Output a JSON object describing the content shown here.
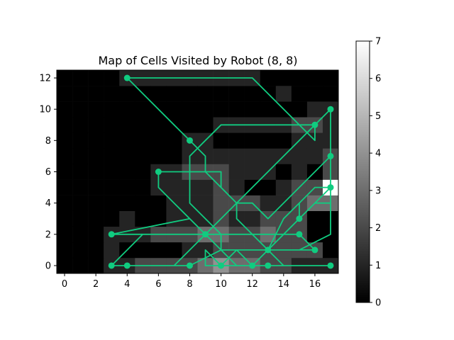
{
  "chart_data": {
    "type": "heatmap",
    "title": "Map of Cells Visited by Robot (8, 8)",
    "xlabel": "",
    "ylabel": "",
    "xlim": [
      -0.5,
      17.5
    ],
    "ylim": [
      -0.5,
      12.5
    ],
    "x_ticks": [
      0,
      2,
      4,
      6,
      8,
      10,
      12,
      14,
      16
    ],
    "y_ticks": [
      0,
      2,
      4,
      6,
      8,
      10,
      12
    ],
    "colorbar": {
      "min": 0,
      "max": 7,
      "ticks": [
        0,
        1,
        2,
        3,
        4,
        5,
        6,
        7
      ],
      "colormap": "gray"
    },
    "grid": false,
    "path_color": "#10cc80",
    "cell_counts": [
      {
        "row": 0,
        "values": [
          0,
          0,
          0,
          1,
          1,
          2,
          2,
          2,
          2,
          3,
          4,
          3,
          3,
          2,
          2,
          1,
          1,
          1
        ]
      },
      {
        "row": 1,
        "values": [
          0,
          0,
          0,
          1,
          0,
          0,
          0,
          0,
          1,
          1,
          2,
          2,
          2,
          2,
          2,
          2,
          2,
          0
        ]
      },
      {
        "row": 2,
        "values": [
          0,
          0,
          0,
          1,
          1,
          1,
          2,
          2,
          2,
          3,
          3,
          2,
          2,
          3,
          2,
          2,
          0,
          0
        ]
      },
      {
        "row": 3,
        "values": [
          0,
          0,
          0,
          0,
          1,
          0,
          0,
          1,
          1,
          1,
          2,
          1,
          1,
          2,
          2,
          2,
          0,
          0
        ]
      },
      {
        "row": 4,
        "values": [
          0,
          0,
          0,
          0,
          0,
          0,
          0,
          1,
          1,
          1,
          2,
          2,
          2,
          1,
          1,
          2,
          3,
          3
        ]
      },
      {
        "row": 5,
        "values": [
          0,
          0,
          0,
          0,
          0,
          0,
          1,
          1,
          1,
          1,
          2,
          1,
          0,
          0,
          1,
          2,
          2,
          7
        ]
      },
      {
        "row": 6,
        "values": [
          0,
          0,
          0,
          0,
          0,
          0,
          1,
          1,
          2,
          2,
          2,
          1,
          1,
          1,
          0,
          1,
          0,
          2
        ]
      },
      {
        "row": 7,
        "values": [
          0,
          0,
          0,
          0,
          0,
          0,
          0,
          0,
          1,
          1,
          1,
          1,
          1,
          1,
          1,
          1,
          1,
          2
        ]
      },
      {
        "row": 8,
        "values": [
          0,
          0,
          0,
          0,
          0,
          0,
          0,
          0,
          1,
          1,
          0,
          0,
          0,
          0,
          0,
          1,
          1,
          1
        ]
      },
      {
        "row": 9,
        "values": [
          0,
          0,
          0,
          0,
          0,
          0,
          0,
          0,
          0,
          0,
          1,
          1,
          1,
          1,
          1,
          2,
          2,
          1
        ]
      },
      {
        "row": 10,
        "values": [
          0,
          0,
          0,
          0,
          0,
          0,
          0,
          0,
          0,
          0,
          0,
          0,
          0,
          0,
          0,
          0,
          1,
          1
        ]
      },
      {
        "row": 11,
        "values": [
          0,
          0,
          0,
          0,
          0,
          0,
          0,
          0,
          0,
          0,
          0,
          0,
          0,
          0,
          1,
          0,
          0,
          0
        ]
      },
      {
        "row": 12,
        "values": [
          0,
          0,
          0,
          0,
          1,
          1,
          1,
          1,
          1,
          1,
          1,
          1,
          1,
          0,
          0,
          0,
          0,
          0
        ]
      }
    ],
    "path": [
      [
        8,
        0
      ],
      [
        5,
        0
      ],
      [
        4,
        0
      ],
      [
        3,
        0
      ],
      [
        4,
        1
      ],
      [
        5,
        2
      ],
      [
        9,
        2
      ],
      [
        10,
        2
      ],
      [
        14,
        2
      ],
      [
        15,
        2
      ],
      [
        16,
        1
      ],
      [
        13,
        1
      ],
      [
        14,
        2
      ],
      [
        15,
        3
      ],
      [
        15,
        4
      ],
      [
        16,
        5
      ],
      [
        17,
        5
      ],
      [
        16,
        5
      ],
      [
        15,
        4
      ],
      [
        14,
        3
      ],
      [
        13,
        1
      ],
      [
        12,
        0
      ],
      [
        10,
        0
      ],
      [
        9,
        1
      ],
      [
        9,
        0
      ],
      [
        10,
        0
      ],
      [
        11,
        1
      ],
      [
        12,
        0
      ],
      [
        13,
        0
      ],
      [
        17,
        0
      ],
      [
        16,
        0
      ],
      [
        15,
        0
      ],
      [
        14,
        0
      ],
      [
        11,
        3
      ],
      [
        11,
        4
      ],
      [
        10,
        5
      ],
      [
        10,
        6
      ],
      [
        9,
        6
      ],
      [
        6,
        6
      ],
      [
        6,
        5
      ],
      [
        7,
        4
      ],
      [
        9,
        2
      ],
      [
        10,
        1
      ],
      [
        12,
        1
      ],
      [
        15,
        1
      ],
      [
        17,
        2
      ],
      [
        17,
        3
      ],
      [
        17,
        4
      ],
      [
        17,
        5
      ],
      [
        17,
        7
      ],
      [
        17,
        10
      ],
      [
        17,
        7
      ],
      [
        16,
        6
      ],
      [
        13,
        3
      ],
      [
        12,
        4
      ],
      [
        11,
        4
      ],
      [
        9,
        6
      ],
      [
        9,
        7
      ],
      [
        8,
        8
      ],
      [
        7,
        9
      ],
      [
        5,
        11
      ],
      [
        4,
        12
      ],
      [
        12,
        12
      ],
      [
        16,
        8
      ],
      [
        16,
        9
      ],
      [
        15,
        9
      ],
      [
        10,
        9
      ],
      [
        9,
        8
      ],
      [
        8,
        7
      ],
      [
        8,
        4
      ],
      [
        9,
        3
      ],
      [
        10,
        2
      ],
      [
        10,
        1
      ],
      [
        11,
        0
      ],
      [
        12,
        0
      ],
      [
        17,
        5
      ],
      [
        17,
        4
      ],
      [
        16,
        4
      ],
      [
        14,
        2
      ],
      [
        13,
        1
      ],
      [
        12,
        1
      ],
      [
        10,
        1
      ],
      [
        9,
        2
      ],
      [
        8,
        3
      ],
      [
        3,
        2
      ],
      [
        10,
        2
      ],
      [
        10,
        1
      ],
      [
        8,
        0
      ],
      [
        7,
        0
      ],
      [
        17,
        10
      ],
      [
        16,
        9
      ],
      [
        15,
        8
      ],
      [
        14,
        7
      ],
      [
        10,
        3
      ],
      [
        8,
        1
      ],
      [
        7,
        0
      ],
      [
        3,
        0
      ]
    ],
    "markers": [
      [
        4,
        12
      ],
      [
        16,
        9
      ],
      [
        17,
        10
      ],
      [
        8,
        8
      ],
      [
        17,
        7
      ],
      [
        6,
        6
      ],
      [
        17,
        5
      ],
      [
        15,
        3
      ],
      [
        3,
        2
      ],
      [
        9,
        2
      ],
      [
        15,
        2
      ],
      [
        13,
        1
      ],
      [
        16,
        1
      ],
      [
        3,
        0
      ],
      [
        4,
        0
      ],
      [
        8,
        0
      ],
      [
        10,
        0
      ],
      [
        12,
        0
      ],
      [
        13,
        0
      ],
      [
        17,
        0
      ]
    ]
  }
}
